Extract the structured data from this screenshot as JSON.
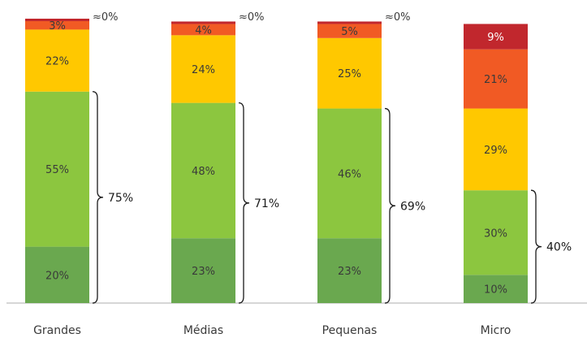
{
  "chart_data": {
    "type": "bar",
    "stacked": true,
    "categories": [
      "Grandes",
      "Médias",
      "Pequenas",
      "Micro"
    ],
    "ylim": [
      0,
      100
    ],
    "series": [
      {
        "color": "#6aa84f",
        "values": [
          20,
          23,
          23,
          10
        ]
      },
      {
        "color": "#8cc63f",
        "values": [
          55,
          48,
          46,
          30
        ]
      },
      {
        "color": "#ffc800",
        "values": [
          22,
          24,
          25,
          29
        ]
      },
      {
        "color": "#f15a24",
        "values": [
          3,
          4,
          5,
          21
        ]
      },
      {
        "color": "#c1272d",
        "values": [
          0,
          0,
          0,
          9
        ]
      }
    ],
    "segment_labels": [
      [
        "20%",
        "55%",
        "22%",
        "3%",
        ""
      ],
      [
        "23%",
        "48%",
        "24%",
        "4%",
        ""
      ],
      [
        "23%",
        "46%",
        "25%",
        "5%",
        ""
      ],
      [
        "10%",
        "30%",
        "29%",
        "21%",
        "9%"
      ]
    ],
    "zero_labels": [
      "≈0%",
      "≈0%",
      "≈0%",
      ""
    ],
    "brace_labels": [
      "75%",
      "71%",
      "69%",
      "40%"
    ],
    "brace_spans_series": 2
  }
}
